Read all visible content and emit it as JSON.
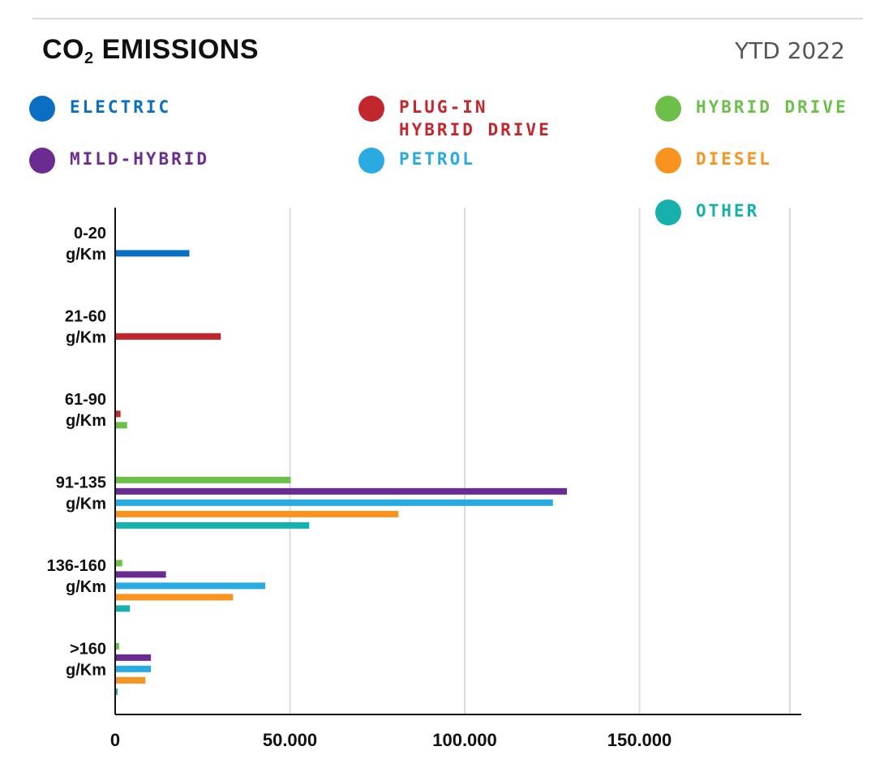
{
  "header": {
    "title_main": "CO",
    "title_sub": "2",
    "title_rest": " EMISSIONS",
    "period": "YTD 2022"
  },
  "legend": [
    {
      "label": "ELECTRIC",
      "color": "#0a6fc2"
    },
    {
      "label": "PLUG-IN HYBRID DRIVE",
      "color": "#c1272d"
    },
    {
      "label": "HYBRID DRIVE",
      "color": "#6cc04a"
    },
    {
      "label": "MILD-HYBRID",
      "color": "#6a2c91"
    },
    {
      "label": "PETROL",
      "color": "#29abe2"
    },
    {
      "label": "DIESEL",
      "color": "#f7931e"
    },
    {
      "label": "OTHER",
      "color": "#17b0ad"
    }
  ],
  "chart_data": {
    "type": "bar",
    "orientation": "horizontal",
    "categories": [
      [
        "0-20",
        "g/Km"
      ],
      [
        "21-60",
        "g/Km"
      ],
      [
        "61-90",
        "g/Km"
      ],
      [
        "91-135",
        "g/Km"
      ],
      [
        "136-160",
        "g/Km"
      ],
      [
        ">160",
        "g/Km"
      ]
    ],
    "xlim": [
      0,
      195000
    ],
    "xticks": [
      0,
      50000,
      100000,
      150000
    ],
    "xtick_labels": [
      "0",
      "50.000",
      "100.000",
      "150.000"
    ],
    "gridlines_x": [
      50000,
      100000,
      150000,
      193000
    ],
    "grid": true,
    "legend_position": "top",
    "series": [
      {
        "name": "ELECTRIC",
        "color": "#0a6fc2",
        "values": [
          21000,
          0,
          0,
          0,
          0,
          0
        ]
      },
      {
        "name": "PLUG-IN HYBRID DRIVE",
        "color": "#c1272d",
        "values": [
          0,
          30000,
          1300,
          0,
          0,
          0
        ]
      },
      {
        "name": "HYBRID DRIVE",
        "color": "#6cc04a",
        "values": [
          0,
          0,
          3200,
          50000,
          1800,
          900
        ]
      },
      {
        "name": "MILD-HYBRID",
        "color": "#6a2c91",
        "values": [
          0,
          0,
          0,
          129000,
          14300,
          10000
        ]
      },
      {
        "name": "PETROL",
        "color": "#29abe2",
        "values": [
          0,
          0,
          0,
          125000,
          42700,
          10000
        ]
      },
      {
        "name": "DIESEL",
        "color": "#f7931e",
        "values": [
          0,
          0,
          0,
          80800,
          33500,
          8400
        ]
      },
      {
        "name": "OTHER",
        "color": "#17b0ad",
        "values": [
          0,
          0,
          0,
          55300,
          4000,
          300
        ]
      }
    ]
  }
}
